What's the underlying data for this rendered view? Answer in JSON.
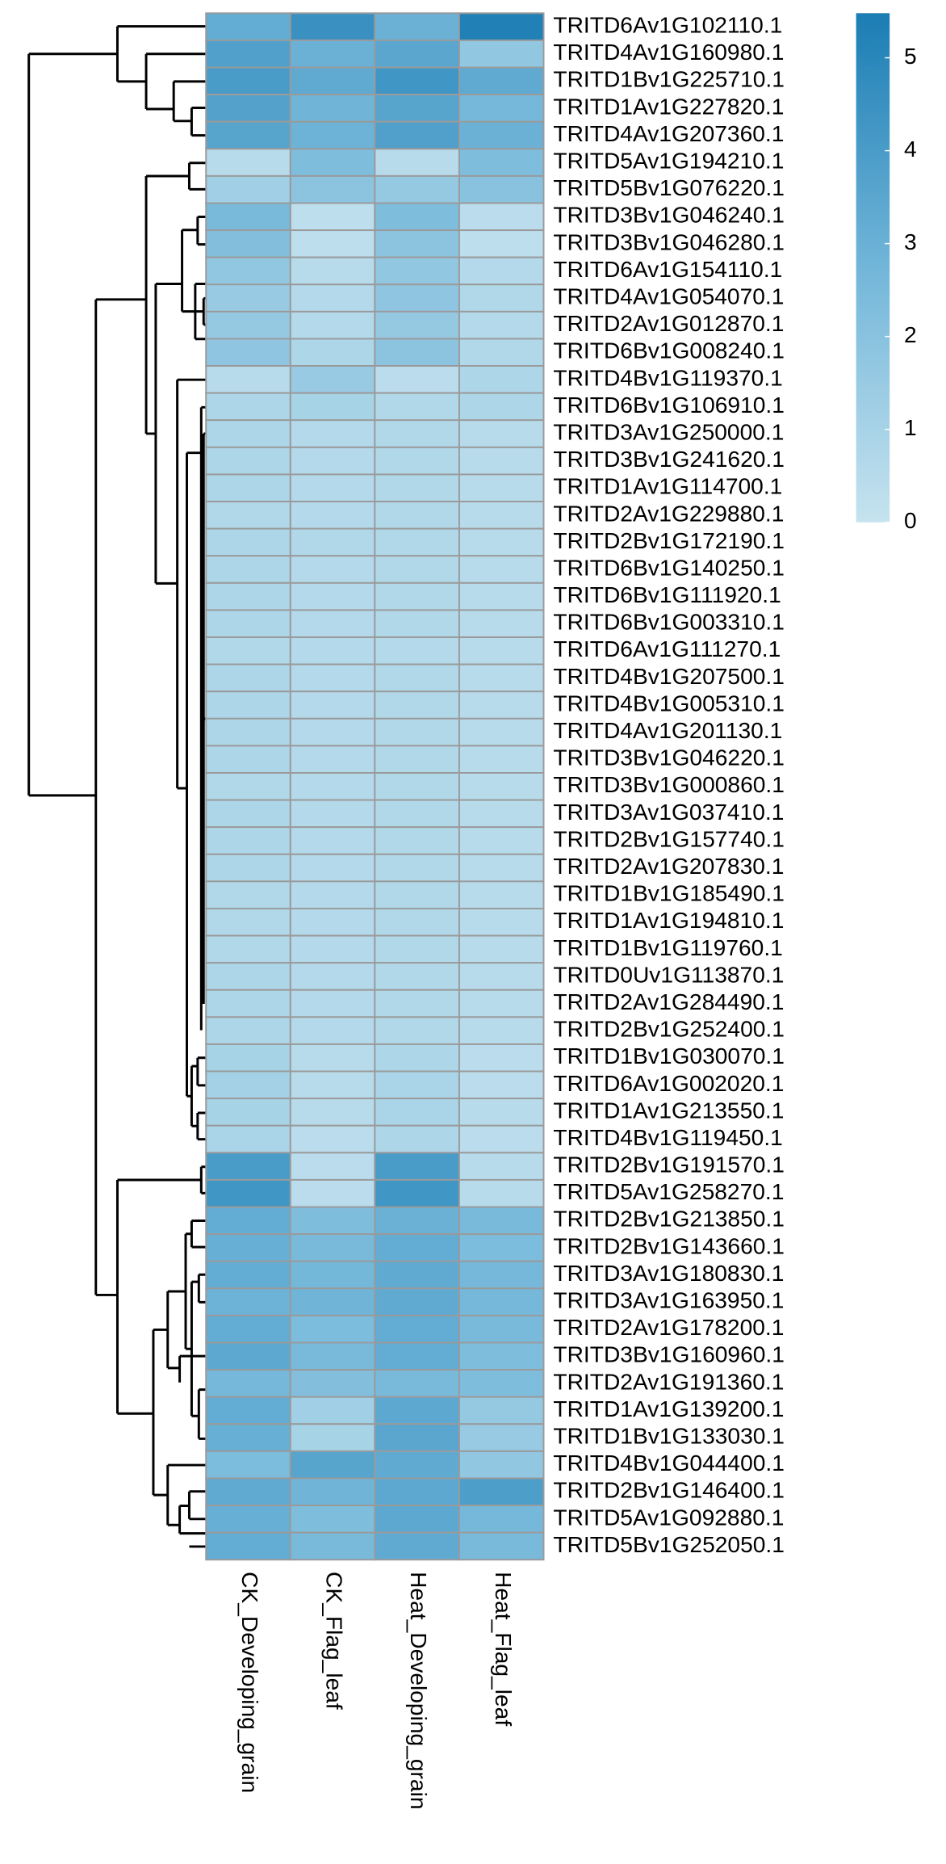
{
  "chart_data": {
    "type": "heatmap",
    "columns": [
      "CK_Developing_grain",
      "CK_Flag_leaf",
      "Heat_Developing_grain",
      "Heat_Flag_leaf"
    ],
    "rows": [
      "TRITD6Av1G102110.1",
      "TRITD4Av1G160980.1",
      "TRITD1Bv1G225710.1",
      "TRITD1Av1G227820.1",
      "TRITD4Av1G207360.1",
      "TRITD5Av1G194210.1",
      "TRITD5Bv1G076220.1",
      "TRITD3Bv1G046240.1",
      "TRITD3Bv1G046280.1",
      "TRITD6Av1G154110.1",
      "TRITD4Av1G054070.1",
      "TRITD2Av1G012870.1",
      "TRITD6Bv1G008240.1",
      "TRITD4Bv1G119370.1",
      "TRITD6Bv1G106910.1",
      "TRITD3Av1G250000.1",
      "TRITD3Bv1G241620.1",
      "TRITD1Av1G114700.1",
      "TRITD2Av1G229880.1",
      "TRITD2Bv1G172190.1",
      "TRITD6Bv1G140250.1",
      "TRITD6Bv1G111920.1",
      "TRITD6Bv1G003310.1",
      "TRITD6Av1G111270.1",
      "TRITD4Bv1G207500.1",
      "TRITD4Bv1G005310.1",
      "TRITD4Av1G201130.1",
      "TRITD3Bv1G046220.1",
      "TRITD3Bv1G000860.1",
      "TRITD3Av1G037410.1",
      "TRITD2Bv1G157740.1",
      "TRITD2Av1G207830.1",
      "TRITD1Bv1G185490.1",
      "TRITD1Av1G194810.1",
      "TRITD1Bv1G119760.1",
      "TRITD0Uv1G113870.1",
      "TRITD2Av1G284490.1",
      "TRITD2Bv1G252400.1",
      "TRITD1Bv1G030070.1",
      "TRITD6Av1G002020.1",
      "TRITD1Av1G213550.1",
      "TRITD4Bv1G119450.1",
      "TRITD2Bv1G191570.1",
      "TRITD5Av1G258270.1",
      "TRITD2Bv1G213850.1",
      "TRITD2Bv1G143660.1",
      "TRITD3Av1G180830.1",
      "TRITD3Av1G163950.1",
      "TRITD2Av1G178200.1",
      "TRITD3Bv1G160960.1",
      "TRITD2Av1G191360.1",
      "TRITD1Av1G139200.1",
      "TRITD1Bv1G133030.1",
      "TRITD4Bv1G044400.1",
      "TRITD2Bv1G146400.1",
      "TRITD5Av1G092880.1",
      "TRITD5Bv1G252050.1"
    ],
    "z": [
      [
        3.2,
        4.5,
        3.0,
        5.3
      ],
      [
        3.8,
        3.0,
        3.5,
        1.7
      ],
      [
        4.0,
        3.3,
        4.3,
        3.3
      ],
      [
        3.7,
        2.8,
        3.6,
        2.6
      ],
      [
        3.6,
        2.9,
        3.8,
        3.0
      ],
      [
        0.5,
        2.3,
        0.5,
        2.3
      ],
      [
        1.2,
        1.9,
        1.6,
        2.0
      ],
      [
        2.5,
        0.3,
        2.3,
        0.4
      ],
      [
        2.2,
        0.3,
        1.9,
        0.3
      ],
      [
        1.7,
        0.5,
        1.7,
        0.6
      ],
      [
        1.5,
        0.6,
        1.8,
        0.7
      ],
      [
        1.6,
        0.6,
        1.6,
        0.6
      ],
      [
        1.8,
        0.8,
        1.9,
        0.7
      ],
      [
        0.5,
        1.5,
        0.4,
        0.8
      ],
      [
        0.8,
        1.0,
        0.7,
        0.8
      ],
      [
        0.8,
        0.6,
        0.7,
        0.5
      ],
      [
        0.8,
        0.6,
        0.7,
        0.5
      ],
      [
        0.8,
        0.6,
        0.7,
        0.5
      ],
      [
        0.7,
        0.6,
        0.7,
        0.5
      ],
      [
        0.8,
        0.7,
        0.7,
        0.5
      ],
      [
        0.8,
        0.6,
        0.7,
        0.5
      ],
      [
        0.8,
        0.6,
        0.7,
        0.5
      ],
      [
        0.8,
        0.6,
        0.7,
        0.5
      ],
      [
        0.7,
        0.6,
        0.6,
        0.5
      ],
      [
        0.8,
        0.6,
        0.7,
        0.5
      ],
      [
        0.8,
        0.6,
        0.7,
        0.5
      ],
      [
        0.8,
        0.6,
        0.7,
        0.5
      ],
      [
        0.8,
        0.6,
        0.7,
        0.5
      ],
      [
        0.7,
        0.6,
        0.7,
        0.5
      ],
      [
        0.8,
        0.6,
        0.7,
        0.5
      ],
      [
        0.8,
        0.6,
        0.7,
        0.5
      ],
      [
        0.8,
        0.6,
        0.7,
        0.5
      ],
      [
        0.7,
        0.6,
        0.7,
        0.5
      ],
      [
        0.7,
        0.6,
        0.7,
        0.5
      ],
      [
        0.7,
        0.6,
        0.7,
        0.5
      ],
      [
        0.8,
        0.6,
        0.7,
        0.5
      ],
      [
        0.8,
        0.6,
        0.7,
        0.5
      ],
      [
        0.8,
        0.6,
        0.7,
        0.5
      ],
      [
        1.0,
        0.5,
        0.8,
        0.4
      ],
      [
        1.1,
        0.5,
        0.9,
        0.4
      ],
      [
        1.0,
        0.5,
        0.9,
        0.5
      ],
      [
        0.9,
        0.4,
        0.8,
        0.4
      ],
      [
        4.0,
        0.4,
        4.0,
        0.5
      ],
      [
        4.3,
        0.4,
        4.3,
        0.5
      ],
      [
        3.2,
        2.3,
        3.0,
        2.5
      ],
      [
        3.1,
        2.5,
        3.2,
        2.4
      ],
      [
        3.2,
        2.7,
        3.3,
        2.6
      ],
      [
        2.9,
        2.8,
        3.3,
        2.6
      ],
      [
        3.2,
        2.4,
        3.2,
        2.5
      ],
      [
        3.4,
        2.5,
        3.2,
        2.3
      ],
      [
        2.6,
        2.2,
        2.5,
        2.3
      ],
      [
        3.2,
        1.2,
        3.4,
        1.6
      ],
      [
        3.1,
        1.0,
        3.5,
        1.5
      ],
      [
        2.4,
        3.6,
        3.3,
        1.7
      ],
      [
        3.3,
        2.8,
        3.4,
        3.9
      ],
      [
        3.1,
        2.3,
        3.4,
        2.6
      ],
      [
        3.2,
        2.5,
        3.3,
        2.5
      ]
    ],
    "zlim": [
      0,
      5.48
    ],
    "zticks": [
      0,
      1,
      2,
      3,
      4,
      5
    ],
    "colors": [
      "#c6e3ef",
      "#72b6d9",
      "#1b7db4"
    ]
  }
}
